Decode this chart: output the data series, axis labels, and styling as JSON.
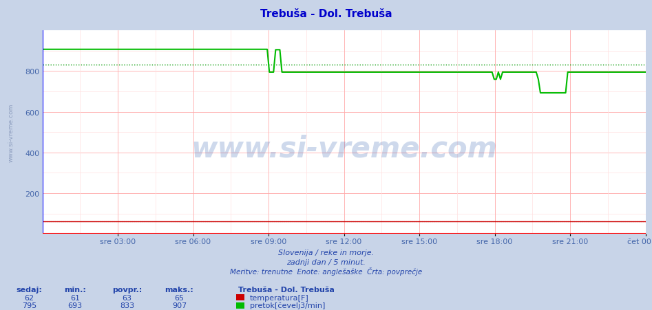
{
  "title": "Trebuša - Dol. Trebuša",
  "title_color": "#0000cc",
  "bg_color": "#c8d4e8",
  "plot_bg_color": "#ffffff",
  "grid_color_major": "#ffaaaa",
  "grid_color_minor": "#ffe0e0",
  "y_min": 0,
  "y_max": 1000,
  "y_ticks": [
    200,
    400,
    600,
    800
  ],
  "y_ticks_all": [
    0,
    200,
    400,
    600,
    800
  ],
  "x_labels": [
    "sre 03:00",
    "sre 06:00",
    "sre 09:00",
    "sre 12:00",
    "sre 15:00",
    "sre 18:00",
    "sre 21:00",
    "čet 00:00"
  ],
  "x_tick_positions": [
    0.125,
    0.25,
    0.375,
    0.5,
    0.625,
    0.75,
    0.875,
    1.0
  ],
  "x_grid_major": [
    0.125,
    0.25,
    0.375,
    0.5,
    0.625,
    0.75,
    0.875,
    1.0
  ],
  "x_grid_minor": [
    0.0,
    0.0625,
    0.1875,
    0.3125,
    0.4375,
    0.5625,
    0.6875,
    0.8125,
    0.9375
  ],
  "temp_color": "#cc0000",
  "flow_color": "#00bb00",
  "avg_flow_color": "#009900",
  "avg_temp_color": "#cc0000",
  "temp_value": 62,
  "temp_min": 61,
  "temp_avg": 63,
  "temp_max": 65,
  "flow_value": 795,
  "flow_min": 693,
  "flow_avg": 833,
  "flow_max": 907,
  "subtitle1": "Slovenija / reke in morje.",
  "subtitle2": "zadnji dan / 5 minut.",
  "subtitle3": "Meritve: trenutne  Enote: anglešaške  Črta: povprečje",
  "footer_title": "Trebuša - Dol. Trebuša",
  "label_temp": "temperatura[F]",
  "label_flow": "pretok[čevelj3/min]",
  "watermark": "www.si-vreme.com",
  "axis_label_color": "#4466aa",
  "subtitle_color": "#2244aa",
  "border_left_color": "#0000ff",
  "border_bottom_color": "#ff0000",
  "sideways_label_color": "#8899bb"
}
